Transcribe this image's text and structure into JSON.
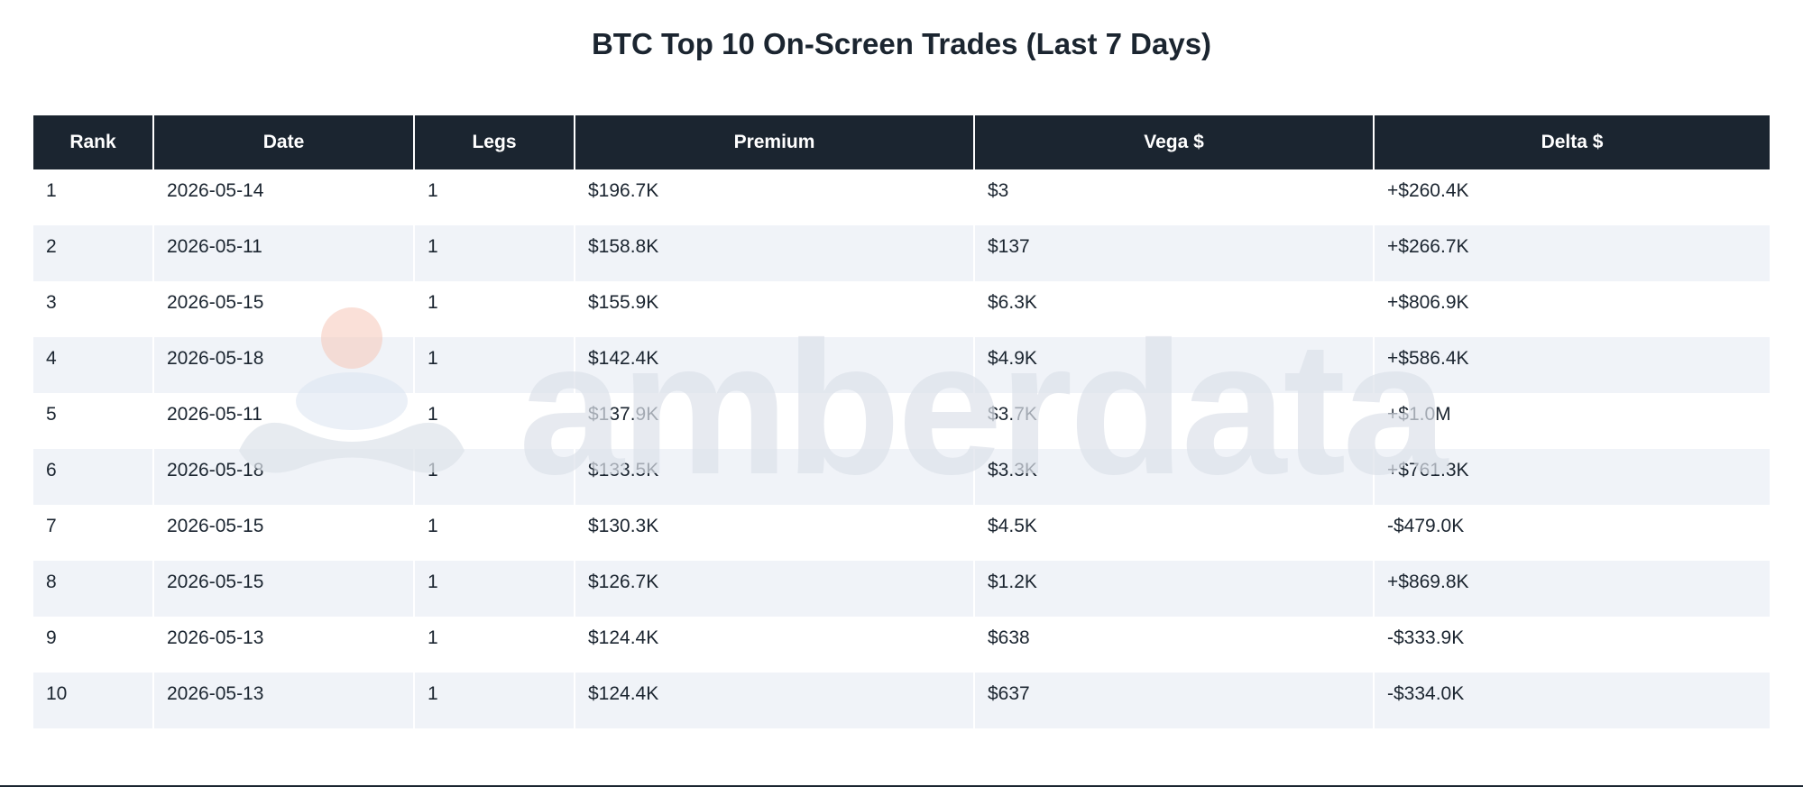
{
  "chart_data": {
    "type": "table",
    "title": "BTC Top 10 On-Screen Trades (Last 7 Days)",
    "columns": [
      "Rank",
      "Date",
      "Legs",
      "Premium",
      "Vega $",
      "Delta $"
    ],
    "rows": [
      [
        "1",
        "2026-05-14",
        "1",
        "$196.7K",
        "$3",
        "+$260.4K"
      ],
      [
        "2",
        "2026-05-11",
        "1",
        "$158.8K",
        "$137",
        "+$266.7K"
      ],
      [
        "3",
        "2026-05-15",
        "1",
        "$155.9K",
        "$6.3K",
        "+$806.9K"
      ],
      [
        "4",
        "2026-05-18",
        "1",
        "$142.4K",
        "$4.9K",
        "+$586.4K"
      ],
      [
        "5",
        "2026-05-11",
        "1",
        "$137.9K",
        "$3.7K",
        "+$1.0M"
      ],
      [
        "6",
        "2026-05-18",
        "1",
        "$133.5K",
        "$3.3K",
        "+$761.3K"
      ],
      [
        "7",
        "2026-05-15",
        "1",
        "$130.3K",
        "$4.5K",
        "-$479.0K"
      ],
      [
        "8",
        "2026-05-15",
        "1",
        "$126.7K",
        "$1.2K",
        "+$869.8K"
      ],
      [
        "9",
        "2026-05-13",
        "1",
        "$124.4K",
        "$638",
        "-$333.9K"
      ],
      [
        "10",
        "2026-05-13",
        "1",
        "$124.4K",
        "$637",
        "-$334.0K"
      ]
    ]
  },
  "watermark": {
    "text": "amberdata",
    "icon": "amberdata-logo-icon"
  },
  "colors": {
    "header_bg": "#1b2530",
    "header_text": "#ffffff",
    "text": "#1b2530",
    "row_stripe": "#f0f3f8",
    "watermark_text": "#dde2ea",
    "watermark_accent": "#f6c7b8"
  }
}
